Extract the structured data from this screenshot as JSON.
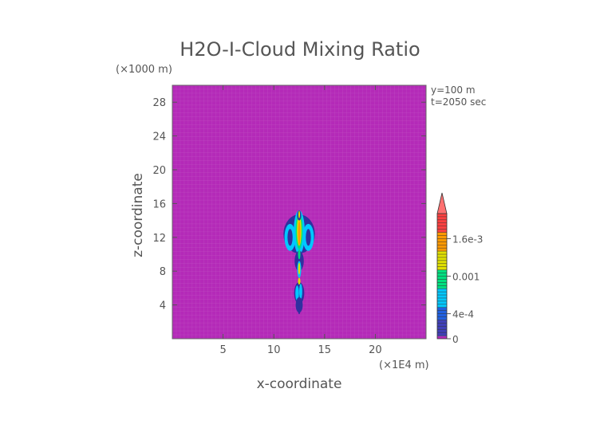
{
  "chart_data": {
    "type": "heatmap",
    "title": "H2O-I-Cloud Mixing Ratio",
    "xlabel": "x-coordinate",
    "ylabel": "z-coordinate",
    "x_unit": "(×1E4 m)",
    "y_unit": "(×1000 m)",
    "annotations": [
      "y=100 m",
      "t=2050 sec"
    ],
    "xlim": [
      0,
      25
    ],
    "ylim": [
      0,
      30
    ],
    "x_ticks": [
      5,
      10,
      15,
      20
    ],
    "y_ticks": [
      4,
      8,
      12,
      16,
      20,
      24,
      28
    ],
    "colorbar": {
      "tick_labels": [
        "0",
        "4e-4",
        "0.001",
        "1.6e-3"
      ],
      "tick_values": [
        0,
        0.0004,
        0.001,
        0.0016
      ],
      "vmax": 0.002,
      "extend": "max"
    },
    "background_color": "#b42ab8",
    "colors": [
      "#b42ab8",
      "#3030a0",
      "#00c8ff",
      "#00e080",
      "#e0e000",
      "#ff9900",
      "#ff4040",
      "#ff7070"
    ],
    "plume": {
      "x_center": 12.5,
      "z_range": [
        3,
        15.2
      ],
      "max_level_z": [
        11,
        14
      ]
    }
  }
}
